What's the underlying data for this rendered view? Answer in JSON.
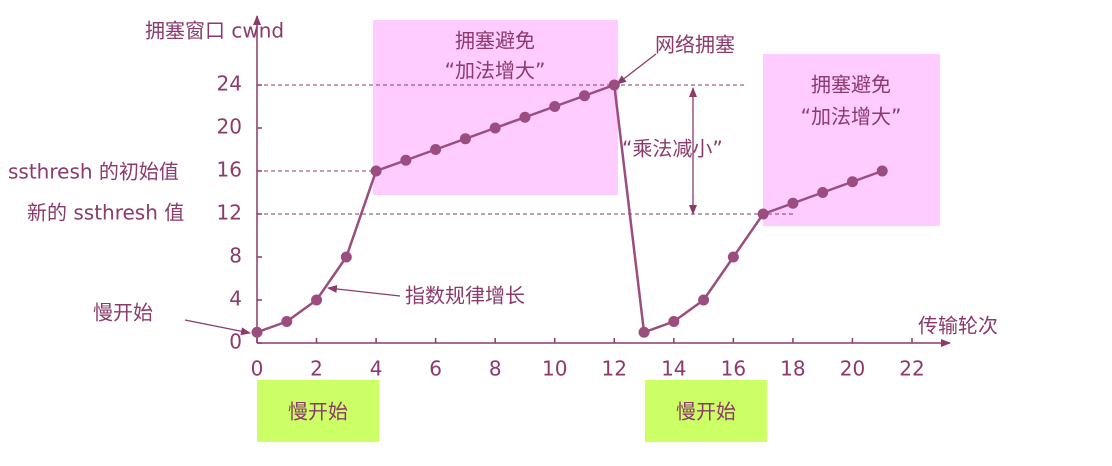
{
  "chart_data": {
    "type": "line",
    "x_label": "传输轮次",
    "y_label": "拥塞窗口 cwnd",
    "x": [
      0,
      1,
      2,
      3,
      4,
      5,
      6,
      7,
      8,
      9,
      10,
      11,
      12,
      13,
      14,
      15,
      16,
      17,
      18,
      19,
      20,
      21
    ],
    "series": [
      {
        "color": "#9b4d7f",
        "values": [
          1,
          2,
          4,
          8,
          16,
          17,
          18,
          19,
          20,
          21,
          22,
          23,
          24,
          1,
          2,
          4,
          8,
          12,
          13,
          14,
          15,
          16
        ]
      }
    ],
    "xlim": [
      0,
      22
    ],
    "ylim": [
      0,
      24
    ],
    "xticks": [
      0,
      2,
      4,
      6,
      8,
      10,
      12,
      14,
      16,
      18,
      20,
      22
    ],
    "yticks": [
      0,
      4,
      8,
      12,
      16,
      20,
      24
    ],
    "annotations": {
      "slow_start": "慢开始",
      "exponential": "指数规律增长",
      "congestion": "网络拥塞",
      "mult_decrease": "“乘法减小”",
      "initial_ssthresh": "ssthresh 的初始值",
      "new_ssthresh": "新的 ssthresh 值",
      "avoid_1": [
        "拥塞避免",
        "“加法增大”"
      ],
      "avoid_2": [
        "拥塞避免",
        "“加法增大”"
      ],
      "slow_start_box_1": "慢开始",
      "slow_start_box_2": "慢开始"
    }
  }
}
